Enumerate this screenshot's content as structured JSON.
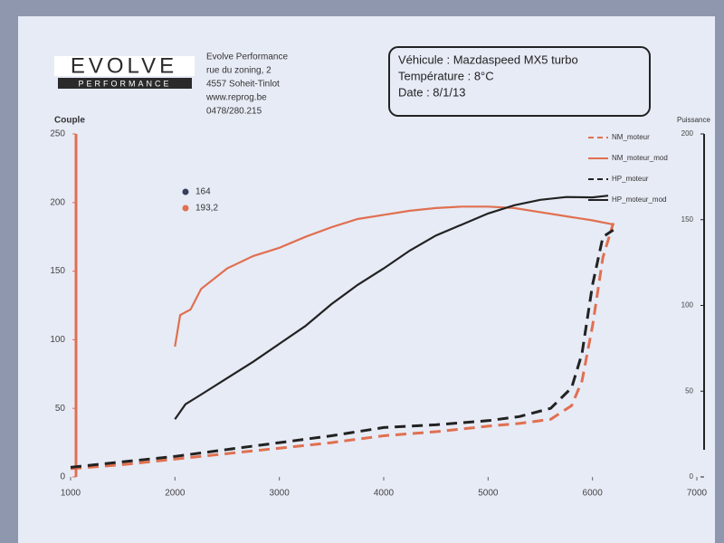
{
  "logo": {
    "name": "EVOLVE",
    "tagline": "PERFORMANCE"
  },
  "address": [
    "Evolve Performance",
    "rue du zoning, 2",
    "4557 Soheit-Tinlot",
    "www.reprog.be",
    "0478/280.215"
  ],
  "info": [
    "Véhicule :  Mazdaspeed MX5 turbo",
    "Température : 8°C",
    "Date :  8/1/13"
  ],
  "chart_data": {
    "type": "line",
    "ylabel": "Couple",
    "y2label": "Puissance",
    "xlim": [
      1000,
      7000
    ],
    "xticks": [
      1000,
      2000,
      3000,
      4000,
      5000,
      6000,
      7000
    ],
    "ylim": [
      0,
      250
    ],
    "yticks": [
      0,
      50,
      100,
      150,
      200,
      250
    ],
    "y2lim": [
      0,
      200
    ],
    "y2ticks": [
      0,
      50,
      100,
      150,
      200
    ],
    "legend": "upper right",
    "annotations": [
      {
        "label": "164",
        "color": "#34405a"
      },
      {
        "label": "193,2",
        "color": "#e07050"
      }
    ],
    "series": [
      {
        "name": "NM_moteur",
        "color": "#e07050",
        "dash": true,
        "x": [
          1000,
          1500,
          2000,
          2500,
          3000,
          3500,
          4000,
          4500,
          5000,
          5300,
          5600,
          5800,
          5900,
          6000,
          6100,
          6200
        ],
        "values": [
          6,
          9,
          13,
          17,
          21,
          25,
          30,
          33,
          37,
          39,
          42,
          52,
          70,
          110,
          160,
          185
        ]
      },
      {
        "name": "NM_moteur_mod",
        "color": "#e07050",
        "dash": false,
        "x": [
          2000,
          2050,
          2150,
          2250,
          2500,
          2750,
          3000,
          3250,
          3500,
          3750,
          4000,
          4250,
          4500,
          4750,
          5000,
          5250,
          5500,
          5750,
          6000,
          6200
        ],
        "values": [
          95,
          118,
          122,
          137,
          152,
          161,
          167,
          175,
          182,
          188,
          191,
          194,
          196,
          197,
          197,
          196,
          193,
          190,
          187,
          184
        ]
      },
      {
        "name": "HP_moteur",
        "color": "#222222",
        "dash": true,
        "axis": "y2",
        "x": [
          1000,
          1500,
          2000,
          2500,
          3000,
          3500,
          4000,
          4500,
          5000,
          5300,
          5600,
          5800,
          5900,
          6000,
          6100,
          6200
        ],
        "values": [
          5.6,
          8.8,
          12,
          16,
          20,
          24,
          28.8,
          30.4,
          32.8,
          35.2,
          40,
          52,
          72,
          112,
          140,
          144
        ]
      },
      {
        "name": "HP_moteur_mod",
        "color": "#222222",
        "dash": false,
        "axis": "y2",
        "x": [
          2000,
          2100,
          2250,
          2500,
          2750,
          3000,
          3250,
          3500,
          3750,
          4000,
          4250,
          4500,
          4750,
          5000,
          5250,
          5500,
          5750,
          6000,
          6150
        ],
        "values": [
          33.6,
          42.4,
          48,
          57.6,
          67.2,
          77.6,
          88,
          100.8,
          112,
          121.6,
          132,
          140.8,
          147.2,
          153.6,
          158.4,
          161.6,
          163.2,
          163,
          164
        ]
      }
    ]
  }
}
